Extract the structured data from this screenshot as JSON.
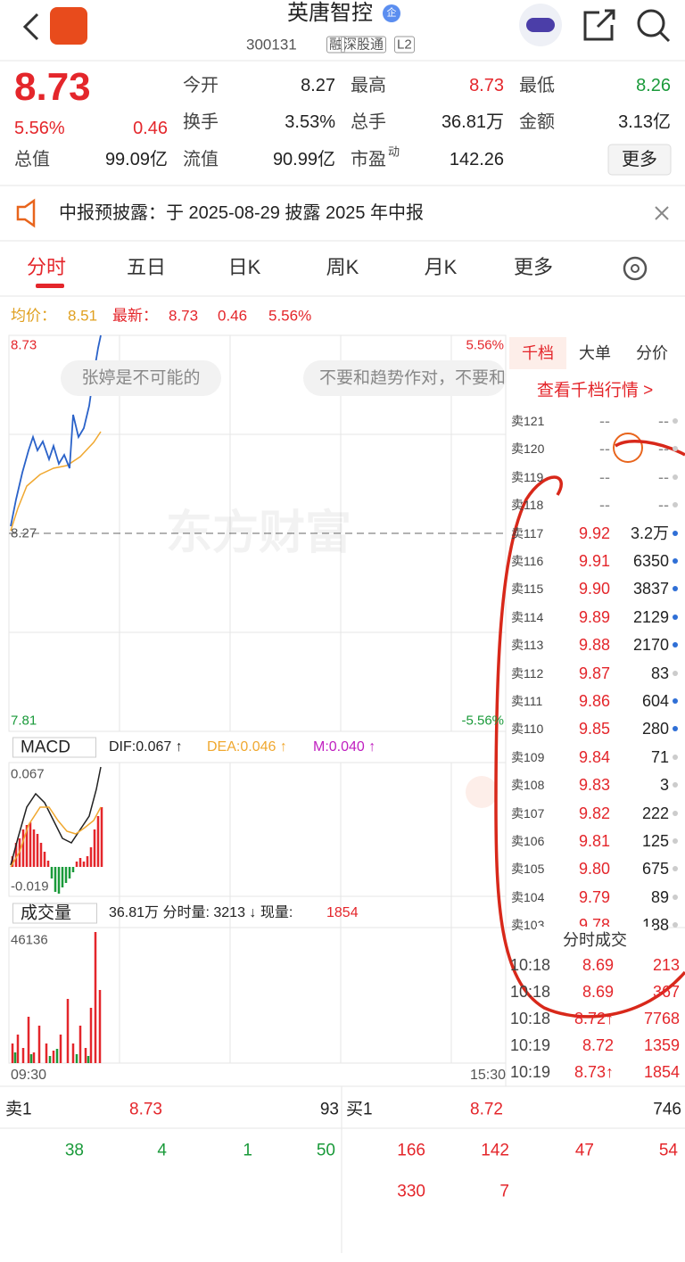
{
  "header": {
    "title": "英唐智控",
    "badge": "企",
    "code": "300131",
    "tags": [
      "融",
      "深股通",
      "L2"
    ]
  },
  "quote": {
    "price": "8.73",
    "change_pct": "5.56%",
    "change": "0.46",
    "total_cap": {
      "label": "总值",
      "value": "99.09亿"
    },
    "stats": [
      {
        "label": "今开",
        "value": "8.27",
        "color": "#222"
      },
      {
        "label": "最高",
        "value": "8.73",
        "color": "#e4262b"
      },
      {
        "label": "最低",
        "value": "8.26",
        "color": "#1a9a3a"
      },
      {
        "label": "换手",
        "value": "3.53%",
        "color": "#222"
      },
      {
        "label": "总手",
        "value": "36.81万",
        "color": "#222"
      },
      {
        "label": "金额",
        "value": "3.13亿",
        "color": "#222"
      },
      {
        "label": "流值",
        "value": "90.99亿",
        "color": "#222"
      },
      {
        "label": "市盈",
        "sup": "动",
        "value": "142.26",
        "color": "#222"
      }
    ],
    "more": "更多"
  },
  "notice": "中报预披露：于 2025-08-29 披露 2025 年中报",
  "tabs": [
    "分时",
    "五日",
    "日K",
    "周K",
    "月K",
    "更多"
  ],
  "intraday": {
    "avg_label": "均价：",
    "avg": "8.51",
    "last_label": "最新：",
    "last": "8.73",
    "change": "0.46",
    "change_pct": "5.56%",
    "high": "8.73",
    "high_pct": "5.56%",
    "base": "8.27",
    "low": "7.81",
    "low_pct": "-5.56%",
    "watermark": "东方财富",
    "comments": [
      "张婷是不可能的",
      "不要和趋势作对，不要和"
    ]
  },
  "macd": {
    "selector": "MACD",
    "dif": "DIF:0.067 ↑",
    "dea": "DEA:0.046 ↑",
    "m": "M:0.040 ↑",
    "max": "0.067",
    "min": "-0.019"
  },
  "volume": {
    "selector": "成交量",
    "summary": "36.81万 分时量: 3213 ↓ 现量:",
    "current": "1854",
    "max": "46136",
    "start": "09:30",
    "end": "15:30"
  },
  "order_book": {
    "tabs": [
      "千档",
      "大单",
      "分价"
    ],
    "link": "查看千档行情 >",
    "asks": [
      {
        "label": "卖121",
        "price": "--",
        "volume": "--",
        "dot_color": "#ccc"
      },
      {
        "label": "卖120",
        "price": "--",
        "volume": "--",
        "dot_color": "#ccc"
      },
      {
        "label": "卖119",
        "price": "--",
        "volume": "--",
        "dot_color": "#ccc"
      },
      {
        "label": "卖118",
        "price": "--",
        "volume": "--",
        "dot_color": "#ccc"
      },
      {
        "label": "卖117",
        "price": "9.92",
        "volume": "3.2万",
        "dot_color": "#2f6fd6"
      },
      {
        "label": "卖116",
        "price": "9.91",
        "volume": "6350",
        "dot_color": "#2f6fd6"
      },
      {
        "label": "卖115",
        "price": "9.90",
        "volume": "3837",
        "dot_color": "#2f6fd6"
      },
      {
        "label": "卖114",
        "price": "9.89",
        "volume": "2129",
        "dot_color": "#2f6fd6"
      },
      {
        "label": "卖113",
        "price": "9.88",
        "volume": "2170",
        "dot_color": "#2f6fd6"
      },
      {
        "label": "卖112",
        "price": "9.87",
        "volume": "83",
        "dot_color": "#ccc"
      },
      {
        "label": "卖111",
        "price": "9.86",
        "volume": "604",
        "dot_color": "#2f6fd6"
      },
      {
        "label": "卖110",
        "price": "9.85",
        "volume": "280",
        "dot_color": "#2f6fd6"
      },
      {
        "label": "卖109",
        "price": "9.84",
        "volume": "71",
        "dot_color": "#ccc"
      },
      {
        "label": "卖108",
        "price": "9.83",
        "volume": "3",
        "dot_color": "#ccc"
      },
      {
        "label": "卖107",
        "price": "9.82",
        "volume": "222",
        "dot_color": "#ccc"
      },
      {
        "label": "卖106",
        "price": "9.81",
        "volume": "125",
        "dot_color": "#ccc"
      },
      {
        "label": "卖105",
        "price": "9.80",
        "volume": "675",
        "dot_color": "#ccc"
      },
      {
        "label": "卖104",
        "price": "9.79",
        "volume": "89",
        "dot_color": "#ccc"
      },
      {
        "label": "卖103",
        "price": "9.78",
        "volume": "188",
        "dot_color": "#ccc"
      }
    ],
    "trades_title": "分时成交",
    "trades": [
      {
        "time": "10:18",
        "price": "8.69",
        "volume": "213"
      },
      {
        "time": "10:18",
        "price": "8.69",
        "volume": "367"
      },
      {
        "time": "10:18",
        "price": "8.72↑",
        "volume": "7768"
      },
      {
        "time": "10:19",
        "price": "8.72",
        "volume": "1359"
      },
      {
        "time": "10:19",
        "price": "8.73↑",
        "volume": "1854"
      }
    ]
  },
  "level1": {
    "ask": {
      "label": "卖1",
      "price": "8.73",
      "volume": "93"
    },
    "bid": {
      "label": "买1",
      "price": "8.72",
      "volume": "746"
    },
    "ask_orders": [
      "38",
      "4",
      "1",
      "50"
    ],
    "bid_orders": [
      "166",
      "142",
      "47",
      "54",
      "330",
      "7"
    ]
  }
}
